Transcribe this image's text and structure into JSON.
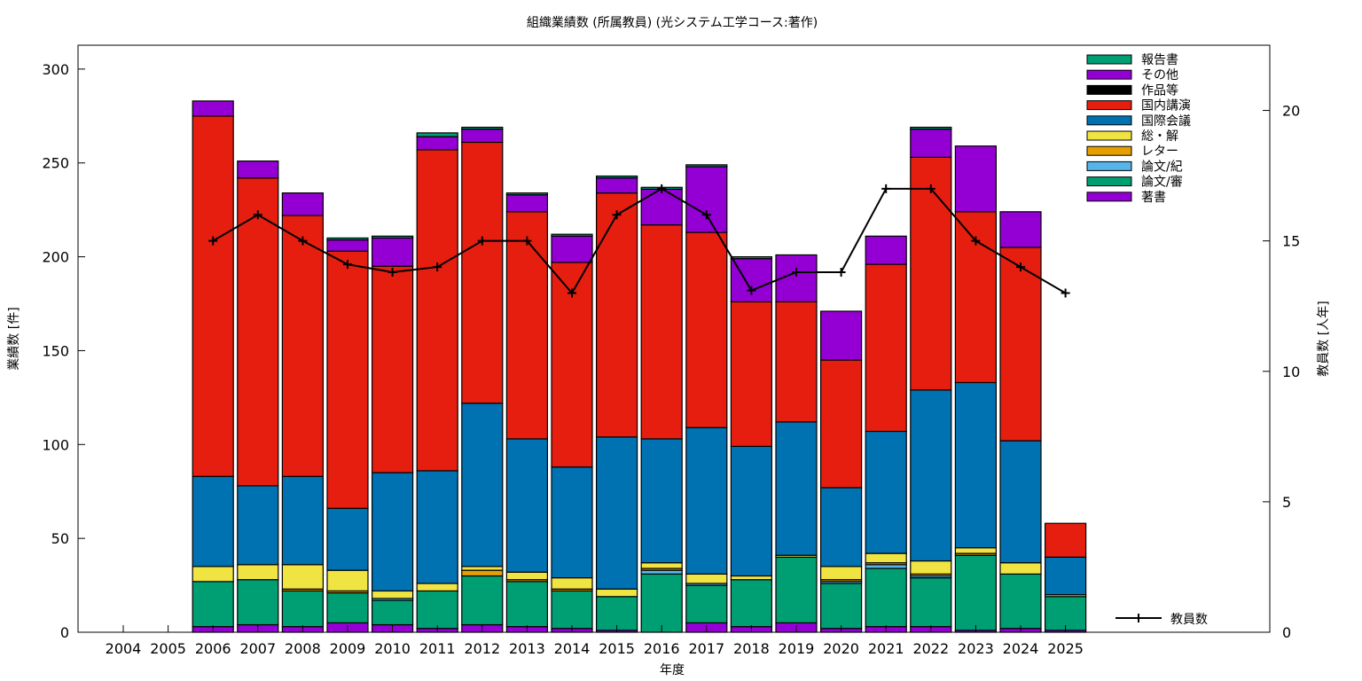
{
  "chart_data": {
    "type": "bar",
    "stacked": true,
    "title": "組織業績数 (所属教員) (光システム工学コース:著作)",
    "xlabel": "年度",
    "ylabel": "業績数 [件]",
    "y2label": "教員数 [人年]",
    "ylim": [
      0,
      312.7
    ],
    "y2lim": [
      0,
      22.5
    ],
    "yticks": [
      0,
      50,
      100,
      150,
      200,
      250,
      300
    ],
    "y2ticks": [
      0,
      5,
      10,
      15,
      20
    ],
    "grid": false,
    "legend_position": "top-right",
    "categories": [
      "2004",
      "2005",
      "2006",
      "2007",
      "2008",
      "2009",
      "2010",
      "2011",
      "2012",
      "2013",
      "2014",
      "2015",
      "2016",
      "2017",
      "2018",
      "2019",
      "2020",
      "2021",
      "2022",
      "2023",
      "2024",
      "2025"
    ],
    "series": [
      {
        "name": "著書",
        "color": "#9400d3",
        "values": [
          0,
          0,
          3,
          4,
          3,
          5,
          4,
          2,
          4,
          3,
          2,
          1,
          0,
          5,
          3,
          5,
          2,
          3,
          3,
          1,
          2,
          1
        ]
      },
      {
        "name": "論文/審",
        "color": "#009e73",
        "values": [
          0,
          0,
          24,
          24,
          19,
          16,
          13,
          20,
          26,
          24,
          20,
          18,
          31,
          20,
          25,
          35,
          24,
          31,
          26,
          40,
          29,
          18
        ]
      },
      {
        "name": "論文/紀",
        "color": "#56b4e9",
        "values": [
          0,
          0,
          0,
          0,
          0,
          0,
          1,
          0,
          0,
          0,
          0,
          0,
          2,
          1,
          0,
          0,
          1,
          2,
          1,
          0,
          0,
          0
        ]
      },
      {
        "name": "レター",
        "color": "#e69f00",
        "values": [
          0,
          0,
          0,
          0,
          1,
          1,
          0,
          0,
          3,
          1,
          1,
          0,
          1,
          0,
          0,
          0,
          1,
          1,
          1,
          1,
          0,
          0
        ]
      },
      {
        "name": "総・解",
        "color": "#f0e442",
        "values": [
          0,
          0,
          8,
          8,
          13,
          11,
          4,
          4,
          2,
          4,
          6,
          4,
          3,
          5,
          2,
          1,
          7,
          5,
          7,
          3,
          6,
          1
        ]
      },
      {
        "name": "国際会議",
        "color": "#0072b2",
        "values": [
          0,
          0,
          48,
          42,
          47,
          33,
          63,
          60,
          87,
          71,
          59,
          81,
          66,
          78,
          69,
          71,
          42,
          65,
          91,
          88,
          65,
          20
        ]
      },
      {
        "name": "国内講演",
        "color": "#e51e10",
        "values": [
          0,
          0,
          192,
          164,
          139,
          137,
          110,
          171,
          139,
          121,
          109,
          130,
          114,
          104,
          77,
          64,
          68,
          89,
          124,
          91,
          103,
          18
        ]
      },
      {
        "name": "作品等",
        "color": "#000000",
        "values": [
          0,
          0,
          0,
          0,
          0,
          0,
          0,
          0,
          0,
          0,
          0,
          0,
          0,
          0,
          0,
          0,
          0,
          0,
          0,
          0,
          0,
          0
        ]
      },
      {
        "name": "その他",
        "color": "#9400d3",
        "values": [
          0,
          0,
          8,
          9,
          12,
          6,
          15,
          7,
          7,
          9,
          14,
          8,
          19,
          35,
          23,
          25,
          26,
          15,
          15,
          35,
          19,
          0
        ]
      },
      {
        "name": "報告書",
        "color": "#009e73",
        "values": [
          0,
          0,
          0,
          0,
          0,
          1,
          1,
          2,
          1,
          1,
          1,
          1,
          1,
          1,
          1,
          0,
          0,
          0,
          1,
          0,
          0,
          0
        ]
      }
    ],
    "legend_order": [
      "報告書",
      "その他",
      "作品等",
      "国内講演",
      "国際会議",
      "総・解",
      "レター",
      "論文/紀",
      "論文/審",
      "著書"
    ],
    "line_series": {
      "name": "教員数",
      "axis": "y2",
      "color": "#000000",
      "values": [
        null,
        null,
        15,
        16,
        15,
        14.1,
        13.8,
        14,
        15,
        15,
        13,
        16,
        17,
        16,
        13.1,
        13.8,
        13.8,
        17,
        17,
        15,
        14,
        13
      ]
    }
  }
}
